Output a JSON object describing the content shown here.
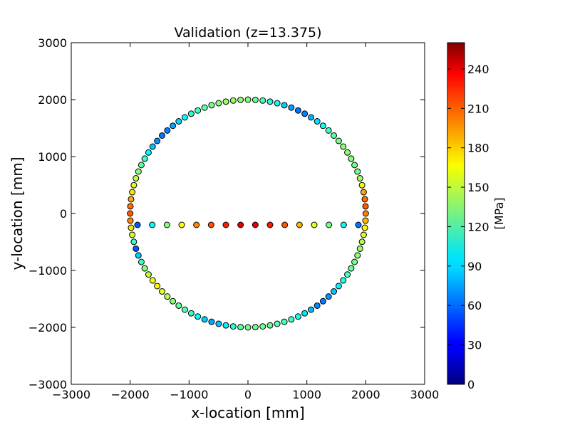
{
  "chart_data": {
    "type": "scatter",
    "title": "Validation (z=13.375)",
    "xlabel": "x-location [mm]",
    "ylabel": "y-location [mm]",
    "xlim": [
      -3000,
      3000
    ],
    "ylim": [
      -3000,
      3000
    ],
    "xticks": [
      -3000,
      -2000,
      -1000,
      0,
      1000,
      2000,
      3000
    ],
    "yticks": [
      -3000,
      -2000,
      -1000,
      0,
      1000,
      2000,
      3000
    ],
    "xtick_labels": [
      "−3000",
      "−2000",
      "−1000",
      "0",
      "1000",
      "2000",
      "3000"
    ],
    "ytick_labels": [
      "−3000",
      "−2000",
      "−1000",
      "0",
      "1000",
      "2000",
      "3000"
    ],
    "grid": false,
    "colormap": "jet",
    "colorbar": {
      "label": "[MPa]",
      "range": [
        0,
        260
      ],
      "ticks": [
        0,
        30,
        60,
        90,
        120,
        150,
        180,
        210,
        240
      ],
      "tick_labels": [
        "0",
        "30",
        "60",
        "90",
        "120",
        "150",
        "180",
        "210",
        "240"
      ]
    },
    "series": [
      {
        "circle": {
          "radius": 2000,
          "count": 100,
          "start_angle_deg": -90,
          "step_deg": 3.6,
          "values_MPa": [
            127,
            127,
            125,
            123,
            120,
            115,
            110,
            102,
            92,
            80,
            68,
            64,
            70,
            82,
            95,
            106,
            115,
            122,
            127,
            132,
            137,
            143,
            152,
            165,
            180,
            195,
            205,
            200,
            185,
            160,
            138,
            127,
            127,
            130,
            134,
            133,
            128,
            121,
            112,
            101,
            90,
            78,
            66,
            62,
            72,
            85,
            98,
            108,
            117,
            124,
            130,
            133,
            137,
            136,
            132,
            127,
            122,
            115,
            108,
            98,
            87,
            75,
            66,
            63,
            70,
            82,
            96,
            110,
            122,
            133,
            145,
            157,
            170,
            185,
            200,
            205,
            193,
            170,
            150,
            112,
            55,
            85,
            112,
            132,
            146,
            158,
            165,
            155,
            143,
            131,
            124,
            118,
            110,
            98,
            85,
            75,
            82,
            95,
            108,
            120
          ]
        },
        "line": {
          "y": -200,
          "x": [
            -1875,
            -1625,
            -1375,
            -1125,
            -875,
            -625,
            -375,
            -125,
            125,
            375,
            625,
            875,
            1125,
            1375,
            1625,
            1875
          ],
          "values_MPa": [
            55,
            98,
            132,
            163,
            193,
            207,
            220,
            235,
            235,
            222,
            205,
            182,
            155,
            128,
            100,
            62
          ]
        }
      }
    ]
  }
}
